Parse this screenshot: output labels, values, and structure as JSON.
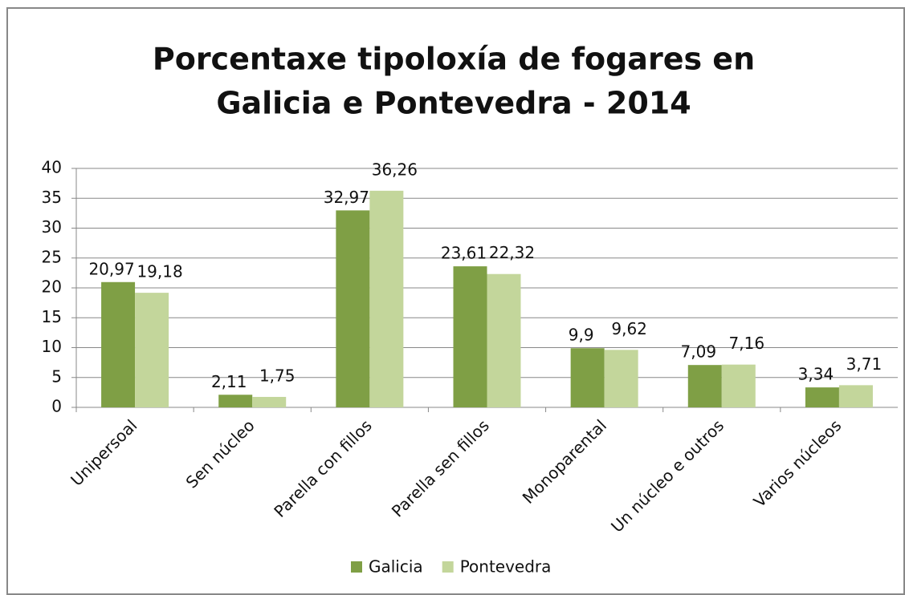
{
  "chart_data": {
    "type": "bar",
    "title": [
      "Porcentaxe tipoloxía de fogares en",
      "Galicia e Pontevedra - 2014"
    ],
    "categories": [
      "Unipersoal",
      "Sen núcleo",
      "Parella con fillos",
      "Parella sen fillos",
      "Monoparental",
      "Un núcleo e outros",
      "Varios núcleos"
    ],
    "series": [
      {
        "name": "Galicia",
        "color": "#7f9f45",
        "values": [
          20.97,
          2.11,
          32.97,
          23.61,
          9.9,
          7.09,
          3.34
        ],
        "value_labels": [
          "20,97",
          "2,11",
          "32,97",
          "23,61",
          "9,9",
          "7,09",
          "3,34"
        ]
      },
      {
        "name": "Pontevedra",
        "color": "#c3d69b",
        "values": [
          19.18,
          1.75,
          36.26,
          22.32,
          9.62,
          7.16,
          3.71
        ],
        "value_labels": [
          "19,18",
          "1,75",
          "36,26",
          "22,32",
          "9,62",
          "7,16",
          "3,71"
        ]
      }
    ],
    "ylim": [
      0,
      40
    ],
    "yticks": [
      0,
      5,
      10,
      15,
      20,
      25,
      30,
      35,
      40
    ],
    "grid": true,
    "legend": "bottom"
  }
}
